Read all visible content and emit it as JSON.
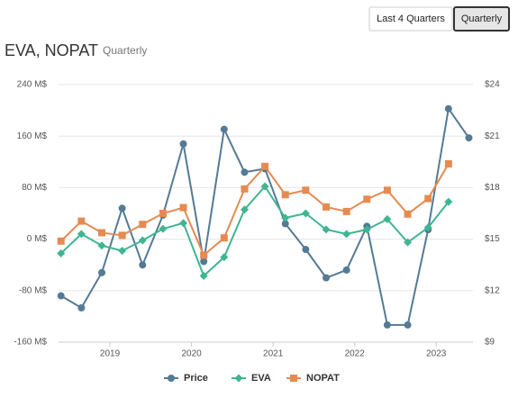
{
  "controls": [
    "Last 4 Quarters",
    "Quarterly"
  ],
  "chart_data": {
    "type": "line",
    "title": "EVA, NOPAT",
    "subtitle": "Quarterly",
    "x": [
      2018.4,
      2018.65,
      2018.9,
      2019.15,
      2019.4,
      2019.65,
      2019.9,
      2020.15,
      2020.4,
      2020.65,
      2020.9,
      2021.15,
      2021.4,
      2021.65,
      2021.9,
      2022.15,
      2022.4,
      2022.65,
      2022.9,
      2023.15,
      2023.4
    ],
    "xlim": [
      2018.37,
      2023.45
    ],
    "xticks": [
      2019,
      2020,
      2021,
      2022,
      2023
    ],
    "ylim": [
      -160,
      240
    ],
    "yticks": [
      {
        "value": -160,
        "label": "-160 M$"
      },
      {
        "value": -80,
        "label": "-80 M$"
      },
      {
        "value": 0,
        "label": "0 M$"
      },
      {
        "value": 80,
        "label": "80 M$"
      },
      {
        "value": 160,
        "label": "160 M$"
      },
      {
        "value": 240,
        "label": "240 M$"
      }
    ],
    "y2lim": [
      9,
      24
    ],
    "y2ticks": [
      {
        "value": 9,
        "label": "$9"
      },
      {
        "value": 12,
        "label": "$12"
      },
      {
        "value": 15,
        "label": "$15"
      },
      {
        "value": 18,
        "label": "$18"
      },
      {
        "value": 21,
        "label": "$21"
      },
      {
        "value": 24,
        "label": "$24"
      }
    ],
    "grid": true,
    "legend": "bottom",
    "series": [
      {
        "name": "Price",
        "color": "#557a95",
        "marker": "circle",
        "axis": "y2",
        "values": [
          11.7,
          11.0,
          13.05,
          16.8,
          13.5,
          16.4,
          20.55,
          13.7,
          21.4,
          18.9,
          19.1,
          15.9,
          14.4,
          12.75,
          13.2,
          15.75,
          10.0,
          10.0,
          15.55,
          22.6,
          20.9
        ]
      },
      {
        "name": "EVA",
        "color": "#3fb591",
        "marker": "diamond",
        "values": [
          -22,
          8,
          -10,
          -18,
          -2,
          16,
          25,
          -57,
          -28,
          46,
          82,
          33,
          40,
          15,
          8,
          15,
          31,
          -5,
          18,
          58,
          null
        ]
      },
      {
        "name": "NOPAT",
        "color": "#e58a51",
        "marker": "square",
        "values": [
          -3,
          28,
          10,
          6,
          23,
          40,
          49,
          -25,
          2,
          78,
          113,
          69,
          76,
          50,
          43,
          62,
          76,
          39,
          63,
          117,
          null
        ]
      }
    ]
  }
}
